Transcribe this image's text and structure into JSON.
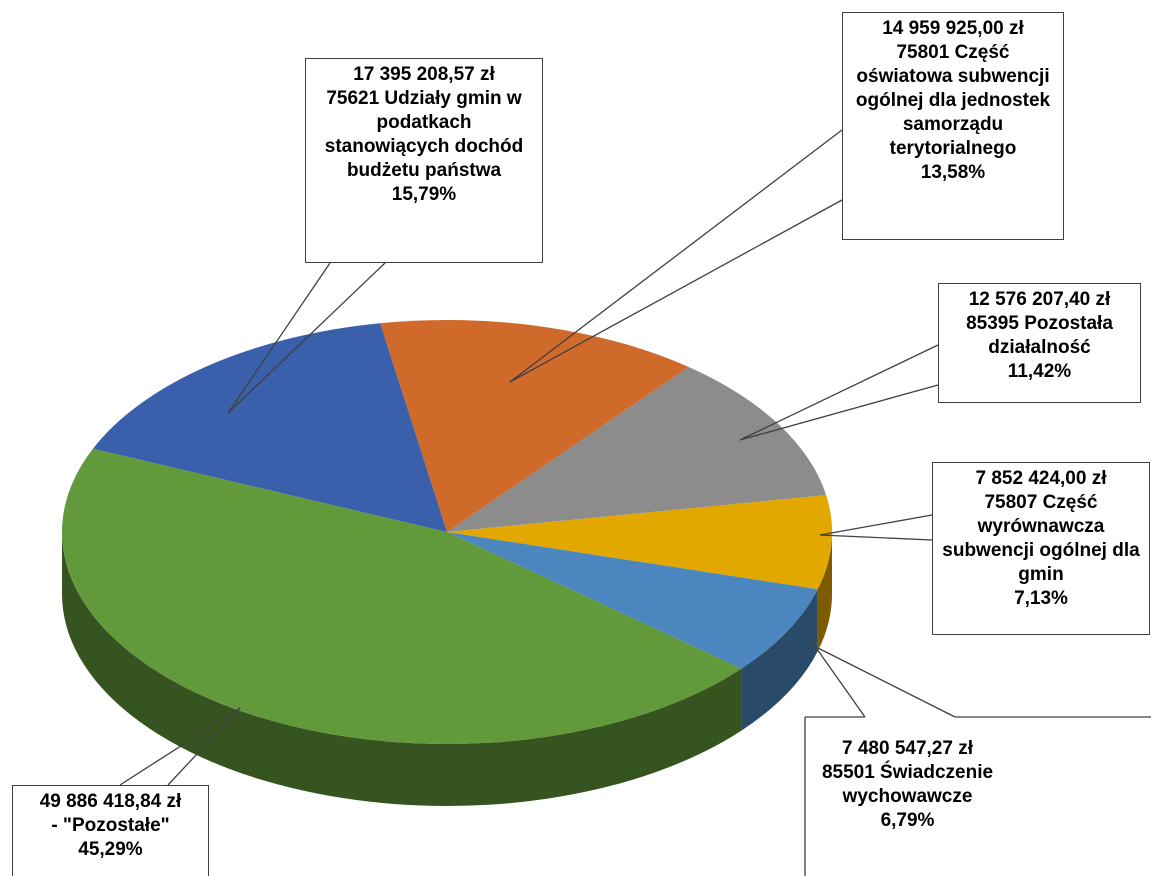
{
  "chart_data": {
    "type": "pie3d",
    "categories": [
      "75801 Część oświatowa subwencji ogólnej dla jednostek samorządu terytorialnego",
      "85395 Pozostała działalność",
      "75807 Część wyrównawcza subwencji ogólnej dla gmin",
      "85501 Świadczenie wychowawcze",
      "- \"Pozostałe\"",
      "75621 Udziały gmin w podatkach stanowiących dochód budżetu państwa"
    ],
    "values": [
      13.58,
      11.42,
      7.13,
      6.79,
      45.29,
      15.79
    ],
    "value_labels": [
      "13,58%",
      "11,42%",
      "7,13%",
      "6,79%",
      "45,29%",
      "15,79%"
    ],
    "amounts": [
      14959925.0,
      12576207.4,
      7852424.0,
      7480547.27,
      49886418.84,
      17395208.57
    ],
    "amount_labels": [
      "14 959 925,00 zł",
      "12 576 207,40 zł",
      "7 852 424,00 zł",
      "7 480 547,27 zł",
      "49 886 418,84 zł",
      "17 395 208,57 zł"
    ],
    "colors": [
      "#d06a2a",
      "#8c8c8c",
      "#e3a800",
      "#4b86bf",
      "#62993a",
      "#3a5fab"
    ]
  }
}
